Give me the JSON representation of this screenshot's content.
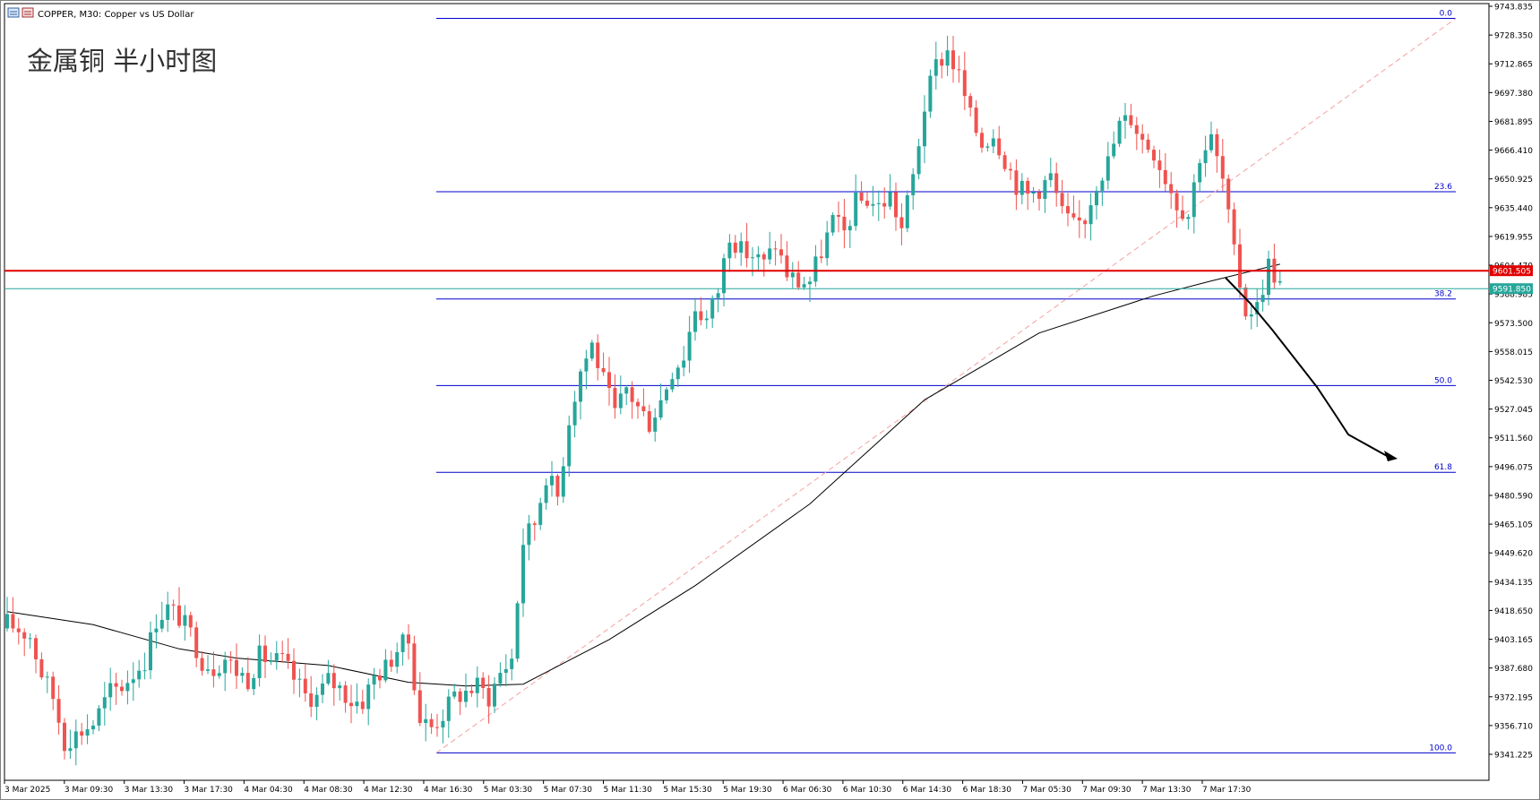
{
  "header": {
    "icon": "chart-window-icon",
    "symbol_label": "COPPER, M30:  Copper vs US Dollar"
  },
  "overlay_title": "金属铜 半小时图",
  "colors": {
    "bull": "#26a69a",
    "bear": "#ef5350",
    "fib_line": "#0000cd",
    "resistance_line": "#e00000",
    "current_price_line": "#26a69a",
    "ma_line": "#000000",
    "trend_dash": "#f4a0a0",
    "arrow": "#000000"
  },
  "chart_data": {
    "type": "candlestick",
    "timeframe": "M30",
    "ylim": [
      9331,
      9749
    ],
    "price_axis_ticks": [
      "9743.835",
      "9728.350",
      "9712.865",
      "9697.380",
      "9681.895",
      "9666.410",
      "9650.925",
      "9635.440",
      "9619.955",
      "9604.470",
      "9588.985",
      "9573.500",
      "9558.015",
      "9542.530",
      "9527.045",
      "9511.560",
      "9496.075",
      "9480.590",
      "9465.105",
      "9449.620",
      "9434.135",
      "9418.650",
      "9403.165",
      "9387.680",
      "9372.195",
      "9356.710",
      "9341.225"
    ],
    "time_axis_labels": [
      "3 Mar 2025",
      "3 Mar 09:30",
      "3 Mar 13:30",
      "3 Mar 17:30",
      "4 Mar 04:30",
      "4 Mar 08:30",
      "4 Mar 12:30",
      "4 Mar 16:30",
      "5 Mar 03:30",
      "5 Mar 07:30",
      "5 Mar 11:30",
      "5 Mar 15:30",
      "5 Mar 19:30",
      "6 Mar 06:30",
      "6 Mar 10:30",
      "6 Mar 14:30",
      "6 Mar 18:30",
      "7 Mar 05:30",
      "7 Mar 09:30",
      "7 Mar 13:30",
      "7 Mar 17:30"
    ],
    "fibonacci": {
      "high": 9737.3,
      "low": 9342.0,
      "levels": [
        {
          "label": "0.0",
          "price": 9737.3
        },
        {
          "label": "23.6",
          "price": 9644.0
        },
        {
          "label": "38.2",
          "price": 9586.3
        },
        {
          "label": "50.0",
          "price": 9539.7
        },
        {
          "label": "61.8",
          "price": 9493.0
        },
        {
          "label": "100.0",
          "price": 9342.0
        }
      ]
    },
    "horizontal_line": {
      "price": 9601.505,
      "label": "9601.505"
    },
    "current_price": {
      "price": 9591.85,
      "label": "9591.850"
    },
    "anchors": [
      [
        0,
        9412
      ],
      [
        4,
        9405
      ],
      [
        6,
        9385
      ],
      [
        8,
        9372
      ],
      [
        10,
        9348
      ],
      [
        12,
        9352
      ],
      [
        15,
        9358
      ],
      [
        18,
        9375
      ],
      [
        20,
        9378
      ],
      [
        24,
        9392
      ],
      [
        26,
        9414
      ],
      [
        28,
        9420
      ],
      [
        30,
        9415
      ],
      [
        32,
        9406
      ],
      [
        34,
        9392
      ],
      [
        36,
        9388
      ],
      [
        38,
        9393
      ],
      [
        40,
        9386
      ],
      [
        42,
        9382
      ],
      [
        44,
        9394
      ],
      [
        46,
        9392
      ],
      [
        48,
        9391
      ],
      [
        50,
        9382
      ],
      [
        52,
        9373
      ],
      [
        54,
        9372
      ],
      [
        56,
        9381
      ],
      [
        58,
        9377
      ],
      [
        60,
        9370
      ],
      [
        62,
        9370
      ],
      [
        64,
        9383
      ],
      [
        66,
        9388
      ],
      [
        68,
        9398
      ],
      [
        70,
        9402
      ],
      [
        72,
        9360
      ],
      [
        74,
        9356
      ],
      [
        76,
        9363
      ],
      [
        78,
        9372
      ],
      [
        80,
        9375
      ],
      [
        82,
        9378
      ],
      [
        84,
        9372
      ],
      [
        86,
        9385
      ],
      [
        88,
        9393
      ],
      [
        90,
        9456
      ],
      [
        92,
        9466
      ],
      [
        94,
        9492
      ],
      [
        96,
        9480
      ],
      [
        98,
        9522
      ],
      [
        100,
        9548
      ],
      [
        102,
        9562
      ],
      [
        104,
        9542
      ],
      [
        106,
        9524
      ],
      [
        108,
        9538
      ],
      [
        110,
        9528
      ],
      [
        112,
        9520
      ],
      [
        114,
        9532
      ],
      [
        116,
        9548
      ],
      [
        118,
        9556
      ],
      [
        120,
        9582
      ],
      [
        122,
        9575
      ],
      [
        124,
        9591
      ],
      [
        126,
        9622
      ],
      [
        128,
        9612
      ],
      [
        130,
        9610
      ],
      [
        132,
        9605
      ],
      [
        134,
        9616
      ],
      [
        136,
        9600
      ],
      [
        138,
        9595
      ],
      [
        140,
        9596
      ],
      [
        142,
        9612
      ],
      [
        144,
        9628
      ],
      [
        146,
        9622
      ],
      [
        148,
        9638
      ],
      [
        150,
        9640
      ],
      [
        152,
        9636
      ],
      [
        154,
        9642
      ],
      [
        156,
        9624
      ],
      [
        158,
        9652
      ],
      [
        160,
        9690
      ],
      [
        162,
        9712
      ],
      [
        164,
        9720
      ],
      [
        166,
        9706
      ],
      [
        168,
        9684
      ],
      [
        170,
        9670
      ],
      [
        172,
        9676
      ],
      [
        174,
        9662
      ],
      [
        176,
        9648
      ],
      [
        178,
        9642
      ],
      [
        180,
        9646
      ],
      [
        182,
        9652
      ],
      [
        184,
        9632
      ],
      [
        186,
        9625
      ],
      [
        188,
        9630
      ],
      [
        190,
        9650
      ],
      [
        192,
        9660
      ],
      [
        194,
        9680
      ],
      [
        196,
        9684
      ],
      [
        198,
        9672
      ],
      [
        200,
        9666
      ],
      [
        202,
        9652
      ],
      [
        204,
        9638
      ],
      [
        206,
        9632
      ],
      [
        208,
        9664
      ],
      [
        210,
        9672
      ],
      [
        212,
        9650
      ],
      [
        214,
        9610
      ],
      [
        216,
        9580
      ],
      [
        218,
        9582
      ],
      [
        220,
        9605
      ],
      [
        222,
        9594
      ]
    ],
    "candle_count": 223,
    "ma_points": [
      [
        0,
        9418
      ],
      [
        15,
        9411
      ],
      [
        30,
        9398
      ],
      [
        40,
        9393
      ],
      [
        56,
        9389
      ],
      [
        70,
        9380
      ],
      [
        80,
        9378
      ],
      [
        90,
        9379
      ],
      [
        105,
        9403
      ],
      [
        120,
        9432
      ],
      [
        140,
        9476
      ],
      [
        160,
        9532
      ],
      [
        180,
        9568
      ],
      [
        200,
        9588
      ],
      [
        210,
        9596
      ],
      [
        222,
        9605
      ]
    ]
  }
}
